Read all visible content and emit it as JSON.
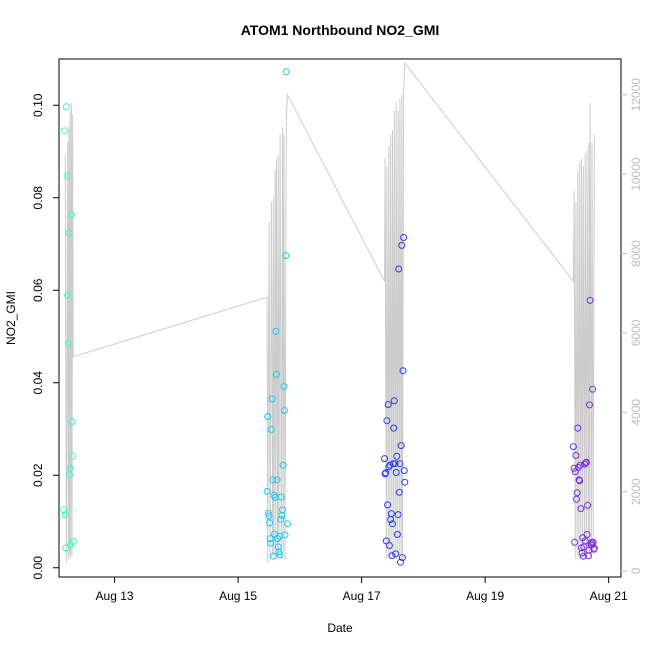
{
  "chart_data": {
    "type": "scatter",
    "title": "ATOM1 Northbound NO2_GMI",
    "xlabel": "Date",
    "ylabel": "NO2_GMI",
    "x_axis": {
      "unit": "date (August)",
      "range": [
        12.1,
        21.2
      ],
      "ticks": [
        13,
        15,
        17,
        19,
        21
      ],
      "tick_labels": [
        "Aug 13",
        "Aug 15",
        "Aug 17",
        "Aug 19",
        "Aug 21"
      ]
    },
    "y_axis": {
      "range": [
        -0.002,
        0.11
      ],
      "ticks": [
        0.0,
        0.02,
        0.04,
        0.06,
        0.08,
        0.1
      ],
      "tick_labels": [
        "0.00",
        "0.02",
        "0.04",
        "0.06",
        "0.08",
        "0.10"
      ]
    },
    "y2_axis": {
      "range": [
        -150,
        12900
      ],
      "ticks": [
        0,
        2000,
        4000,
        6000,
        8000,
        10000,
        12000
      ],
      "tick_labels": [
        "0",
        "2000",
        "4000",
        "6000",
        "8000",
        "10000",
        "12000"
      ],
      "color": "#bebebe"
    },
    "grid": false,
    "legend": "none",
    "point_series": [
      {
        "color": "#33ffb8",
        "x": [
          12.18,
          12.19,
          12.2,
          12.21,
          12.22,
          12.23,
          12.24,
          12.25,
          12.26,
          12.27,
          12.28,
          12.29,
          12.3,
          12.31,
          12.32,
          12.33
        ],
        "y": [
          0.0125,
          0.0945,
          0.0115,
          0.0043,
          0.0997,
          0.0847,
          0.0589,
          0.0485,
          0.0724,
          0.0201,
          0.0215,
          0.005,
          0.0763,
          0.0316,
          0.0241,
          0.0057
        ]
      },
      {
        "color": "#1ec8f0",
        "x": [
          15.47,
          15.48,
          15.49,
          15.5,
          15.51,
          15.52,
          15.53,
          15.54,
          15.55,
          15.56,
          15.57,
          15.58,
          15.59,
          15.6,
          15.61,
          15.62,
          15.63,
          15.64,
          15.65,
          15.66,
          15.67,
          15.68,
          15.69,
          15.7,
          15.71,
          15.72,
          15.73,
          15.74,
          15.75,
          15.76,
          15.77,
          15.78,
          15.8
        ],
        "y": [
          0.0165,
          0.0327,
          0.0118,
          0.0112,
          0.0097,
          0.0063,
          0.0053,
          0.0299,
          0.0365,
          0.019,
          0.0025,
          0.0157,
          0.0073,
          0.0152,
          0.0511,
          0.0418,
          0.019,
          0.0063,
          0.0045,
          0.0034,
          0.0068,
          0.0028,
          0.0105,
          0.0153,
          0.0113,
          0.0125,
          0.0222,
          0.0392,
          0.034,
          0.0071,
          0.0675,
          0.1072,
          0.0095
        ]
      },
      {
        "color": "#2a3fe8",
        "x": [
          17.37,
          17.38,
          17.39,
          17.4,
          17.41,
          17.42,
          17.43,
          17.44,
          17.45,
          17.46,
          17.47,
          17.48,
          17.49,
          17.5,
          17.51,
          17.52,
          17.53,
          17.54,
          17.55,
          17.56,
          17.57,
          17.58,
          17.59,
          17.6,
          17.61,
          17.62,
          17.63,
          17.64,
          17.65,
          17.66,
          17.67,
          17.68,
          17.69,
          17.7
        ],
        "y": [
          0.0236,
          0.0203,
          0.0205,
          0.0058,
          0.0318,
          0.0136,
          0.0353,
          0.0218,
          0.0048,
          0.0222,
          0.0104,
          0.0117,
          0.0026,
          0.0095,
          0.0225,
          0.0302,
          0.0361,
          0.0225,
          0.003,
          0.0206,
          0.0241,
          0.0072,
          0.0115,
          0.0646,
          0.0163,
          0.0225,
          0.0012,
          0.0264,
          0.0697,
          0.0022,
          0.0426,
          0.0714,
          0.021,
          0.0185
        ]
      },
      {
        "color": "#7b2ee0",
        "x": [
          20.43,
          20.44,
          20.45,
          20.46,
          20.47,
          20.48,
          20.49,
          20.5,
          20.51,
          20.52,
          20.53,
          20.54,
          20.55,
          20.56,
          20.57,
          20.58,
          20.59,
          20.6,
          20.61,
          20.62,
          20.63,
          20.64,
          20.65,
          20.66,
          20.67,
          20.68,
          20.69,
          20.7,
          20.71,
          20.72,
          20.73,
          20.74,
          20.75,
          20.76,
          20.77
        ],
        "y": [
          0.0262,
          0.0215,
          0.0055,
          0.0208,
          0.0243,
          0.0148,
          0.0162,
          0.0302,
          0.0217,
          0.019,
          0.0188,
          0.0222,
          0.0128,
          0.0043,
          0.0032,
          0.0065,
          0.0025,
          0.0045,
          0.0224,
          0.0058,
          0.0227,
          0.0228,
          0.0072,
          0.0135,
          0.0026,
          0.0038,
          0.0352,
          0.0578,
          0.0053,
          0.0049,
          0.0055,
          0.0386,
          0.0055,
          0.004,
          0.0042
        ]
      }
    ],
    "secondary_line": {
      "color": "#cccccc",
      "axis": "y2",
      "note_segments": "altitude profile",
      "x": [
        12.2,
        12.22,
        12.24,
        12.25,
        12.26,
        12.27,
        12.28,
        12.29,
        12.3,
        12.31,
        12.32,
        12.33,
        15.47,
        15.48,
        15.5,
        15.52,
        15.54,
        15.56,
        15.57,
        15.58,
        15.6,
        15.61,
        15.62,
        15.64,
        15.65,
        15.66,
        15.68,
        15.7,
        15.72,
        15.73,
        15.74,
        15.76,
        15.78,
        15.8,
        17.37,
        17.38,
        17.4,
        17.41,
        17.43,
        17.44,
        17.46,
        17.47,
        17.49,
        17.5,
        17.52,
        17.53,
        17.55,
        17.56,
        17.58,
        17.59,
        17.61,
        17.62,
        17.64,
        17.65,
        17.66,
        17.68,
        17.7,
        20.43,
        20.44,
        20.46,
        20.47,
        20.49,
        20.5,
        20.52,
        20.53,
        20.55,
        20.56,
        20.58,
        20.59,
        20.61,
        20.62,
        20.64,
        20.65,
        20.67,
        20.68,
        20.69,
        20.7,
        20.72,
        20.73,
        20.75,
        20.77
      ],
      "y": [
        10500,
        200,
        10800,
        300,
        11200,
        400,
        11600,
        300,
        11800,
        400,
        11500,
        5400,
        6900,
        200,
        8800,
        300,
        9300,
        400,
        9400,
        300,
        10100,
        400,
        10400,
        300,
        10500,
        400,
        11000,
        300,
        11200,
        500,
        11000,
        300,
        11400,
        12000,
        7300,
        10400,
        300,
        10200,
        400,
        10700,
        300,
        11000,
        300,
        11100,
        400,
        11600,
        300,
        11800,
        400,
        11600,
        300,
        11900,
        400,
        12000,
        300,
        12000,
        12800,
        7300,
        9600,
        300,
        9300,
        400,
        10100,
        300,
        10300,
        500,
        10400,
        300,
        10200,
        600,
        10500,
        300,
        10600,
        500,
        10800,
        400,
        11800,
        300,
        10800,
        600,
        11000
      ]
    }
  }
}
